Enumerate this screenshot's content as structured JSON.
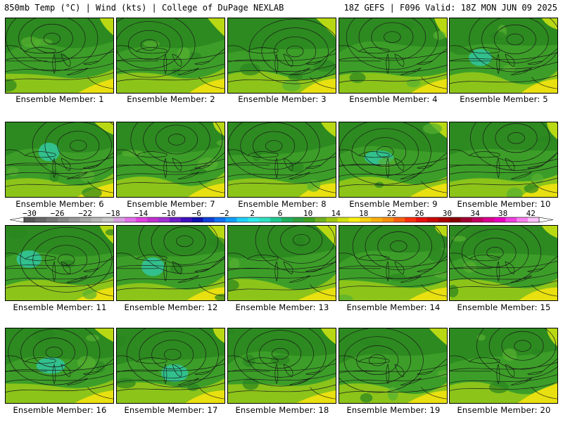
{
  "header": {
    "left": "850mb Temp (°C) | Wind (kts) | College of DuPage NEXLAB",
    "right": "18Z GEFS | F096 Valid: 18Z MON JUN 09 2025"
  },
  "panels": [
    {
      "label": "Ensemble Member: 1"
    },
    {
      "label": "Ensemble Member: 2"
    },
    {
      "label": "Ensemble Member: 3"
    },
    {
      "label": "Ensemble Member: 4"
    },
    {
      "label": "Ensemble Member: 5"
    },
    {
      "label": "Ensemble Member: 6"
    },
    {
      "label": "Ensemble Member: 7"
    },
    {
      "label": "Ensemble Member: 8"
    },
    {
      "label": "Ensemble Member: 9"
    },
    {
      "label": "Ensemble Member: 10"
    },
    {
      "label": "Ensemble Member: 11"
    },
    {
      "label": "Ensemble Member: 12"
    },
    {
      "label": "Ensemble Member: 13"
    },
    {
      "label": "Ensemble Member: 14"
    },
    {
      "label": "Ensemble Member: 15"
    },
    {
      "label": "Ensemble Member: 16"
    },
    {
      "label": "Ensemble Member: 17"
    },
    {
      "label": "Ensemble Member: 18"
    },
    {
      "label": "Ensemble Member: 19"
    },
    {
      "label": "Ensemble Member: 20"
    }
  ],
  "colorbar": {
    "ticks": [
      "-30",
      "-26",
      "-22",
      "-18",
      "-14",
      "-10",
      "-6",
      "-2",
      "2",
      "6",
      "10",
      "14",
      "18",
      "22",
      "26",
      "30",
      "34",
      "38",
      "42"
    ],
    "colors": [
      "#585858",
      "#686868",
      "#787878",
      "#888888",
      "#989898",
      "#a8a8a8",
      "#b8b8b8",
      "#c8c8c8",
      "#d8a0e0",
      "#e070e8",
      "#e040e0",
      "#c030d0",
      "#a030d0",
      "#7020c8",
      "#4010c0",
      "#1010b0",
      "#1040d8",
      "#1070f0",
      "#10a0f8",
      "#20d0f8",
      "#30e8e8",
      "#30e0c0",
      "#20c890",
      "#20b060",
      "#30a040",
      "#40a020",
      "#70b020",
      "#a0c810",
      "#d0e010",
      "#f8f010",
      "#f8d010",
      "#f8b010",
      "#f89010",
      "#f86010",
      "#f83010",
      "#e81010",
      "#c80808",
      "#a80000",
      "#880000",
      "#a00030",
      "#c00060",
      "#d80090",
      "#e800c0",
      "#f040e0",
      "#f880f0",
      "#fcc0f8"
    ]
  }
}
